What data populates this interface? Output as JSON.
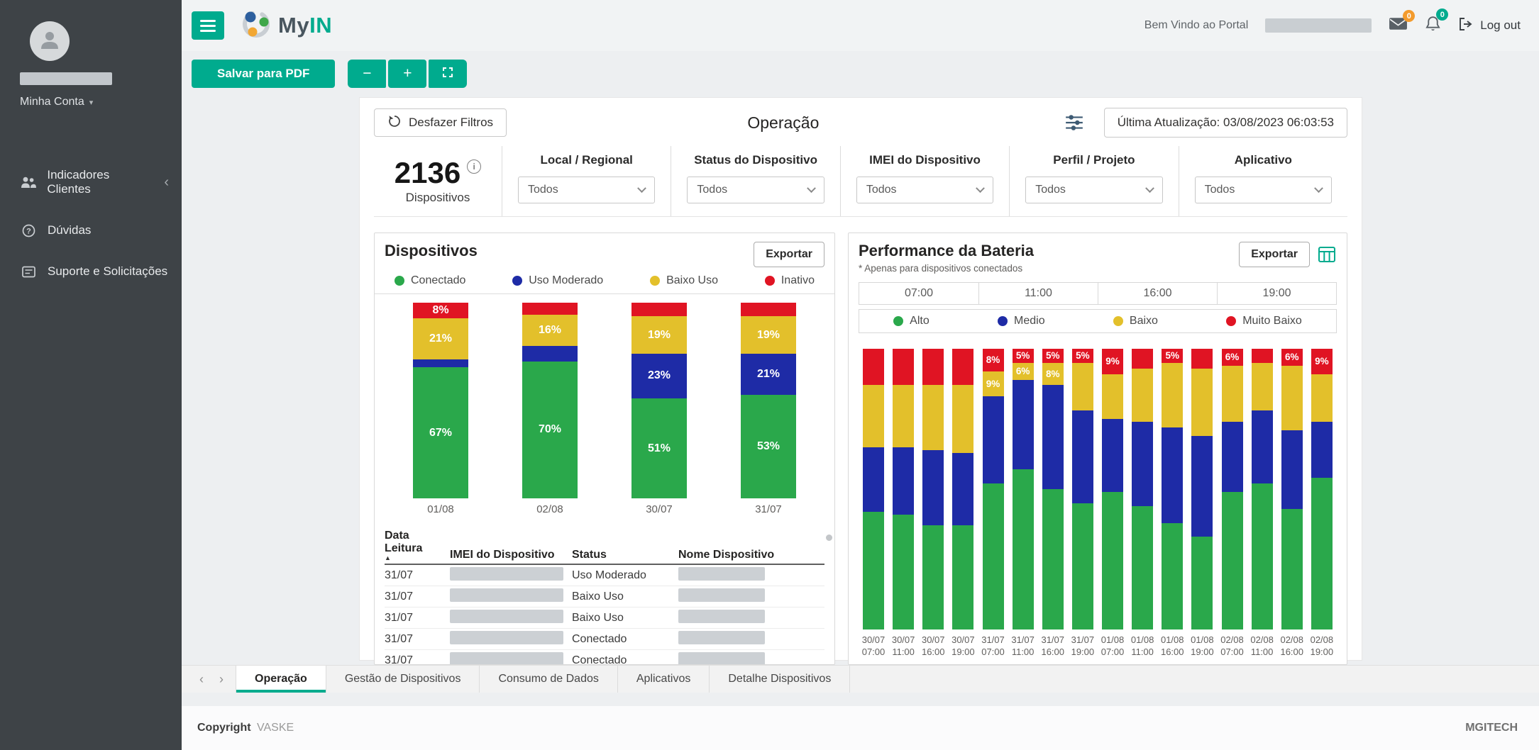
{
  "colors": {
    "accent": "#00ab8e",
    "sidebar_bg": "#3e4347",
    "green": "#2aa84b",
    "blue": "#1e2ba6",
    "yellow": "#e3c02b",
    "red": "#e01423",
    "badge_orange": "#f39b2d"
  },
  "sidebar": {
    "account_label": "Minha Conta",
    "items": [
      {
        "label": "Indicadores Clientes",
        "icon": "people-icon",
        "has_chevron": true
      },
      {
        "label": "Dúvidas",
        "icon": "question-icon",
        "has_chevron": false
      },
      {
        "label": "Suporte e Solicitações",
        "icon": "support-icon",
        "has_chevron": false
      }
    ]
  },
  "header": {
    "brand_my": "My",
    "brand_in": "IN",
    "welcome": "Bem Vindo ao Portal",
    "mail_badge": "0",
    "bell_badge": "0",
    "logout": "Log out"
  },
  "toolbar": {
    "save_pdf": "Salvar para PDF",
    "zoom_out": "−",
    "zoom_in": "+"
  },
  "report": {
    "undo_filters": "Desfazer Filtros",
    "title": "Operação",
    "last_update": "Última Atualização: 03/08/2023 06:03:53",
    "kpi": {
      "value": "2136",
      "label": "Dispositivos"
    },
    "filters": [
      {
        "label": "Local / Regional",
        "value": "Todos"
      },
      {
        "label": "Status do Dispositivo",
        "value": "Todos"
      },
      {
        "label": "IMEI do Dispositivo",
        "value": "Todos"
      },
      {
        "label": "Perfil / Projeto",
        "value": "Todos"
      },
      {
        "label": "Aplicativo",
        "value": "Todos"
      }
    ]
  },
  "chart_data": [
    {
      "type": "bar",
      "stacked": true,
      "value_format": "percent",
      "title": "Dispositivos",
      "export_label": "Exportar",
      "legend_position": "top",
      "ylim": [
        0,
        100
      ],
      "categories": [
        "01/08",
        "02/08",
        "30/07",
        "31/07"
      ],
      "series": [
        {
          "name": "Conectado",
          "color": "#2aa84b",
          "values": [
            67,
            70,
            51,
            53
          ],
          "labels": [
            "67%",
            "70%",
            "51%",
            "53%"
          ]
        },
        {
          "name": "Uso Moderado",
          "color": "#1e2ba6",
          "values": [
            4,
            8,
            23,
            21
          ],
          "labels": [
            null,
            null,
            "23%",
            "21%"
          ]
        },
        {
          "name": "Baixo Uso",
          "color": "#e3c02b",
          "values": [
            21,
            16,
            19,
            19
          ],
          "labels": [
            "21%",
            "16%",
            "19%",
            "19%"
          ]
        },
        {
          "name": "Inativo",
          "color": "#e01423",
          "values": [
            8,
            6,
            7,
            7
          ],
          "labels": [
            "8%",
            null,
            null,
            null
          ]
        }
      ]
    },
    {
      "type": "bar",
      "stacked": true,
      "value_format": "percent",
      "title": "Performance da Bateria",
      "subtitle": "* Apenas para dispositivos conectados",
      "export_label": "Exportar",
      "legend_position": "top",
      "ylim": [
        0,
        100
      ],
      "time_header": [
        "07:00",
        "11:00",
        "16:00",
        "19:00"
      ],
      "categories": [
        [
          "30/07",
          "07:00"
        ],
        [
          "30/07",
          "11:00"
        ],
        [
          "30/07",
          "16:00"
        ],
        [
          "30/07",
          "19:00"
        ],
        [
          "31/07",
          "07:00"
        ],
        [
          "31/07",
          "11:00"
        ],
        [
          "31/07",
          "16:00"
        ],
        [
          "31/07",
          "19:00"
        ],
        [
          "01/08",
          "07:00"
        ],
        [
          "01/08",
          "11:00"
        ],
        [
          "01/08",
          "16:00"
        ],
        [
          "01/08",
          "19:00"
        ],
        [
          "02/08",
          "07:00"
        ],
        [
          "02/08",
          "11:00"
        ],
        [
          "02/08",
          "16:00"
        ],
        [
          "02/08",
          "19:00"
        ]
      ],
      "series": [
        {
          "name": "Alto",
          "color": "#2aa84b",
          "values": [
            42,
            41,
            37,
            37,
            52,
            57,
            50,
            45,
            49,
            44,
            38,
            33,
            49,
            52,
            43,
            54
          ],
          "labels": [
            null,
            null,
            null,
            null,
            null,
            null,
            null,
            null,
            null,
            null,
            null,
            null,
            null,
            null,
            null,
            null
          ]
        },
        {
          "name": "Medio",
          "color": "#1e2ba6",
          "values": [
            23,
            24,
            27,
            26,
            31,
            32,
            37,
            33,
            26,
            30,
            34,
            36,
            25,
            26,
            28,
            20
          ],
          "labels": [
            null,
            null,
            null,
            null,
            null,
            null,
            null,
            null,
            null,
            null,
            null,
            null,
            null,
            null,
            null,
            null
          ]
        },
        {
          "name": "Baixo",
          "color": "#e3c02b",
          "values": [
            22,
            22,
            23,
            24,
            9,
            6,
            8,
            17,
            16,
            19,
            23,
            24,
            20,
            17,
            23,
            17
          ],
          "labels": [
            null,
            null,
            null,
            null,
            "9%",
            "6%",
            "8%",
            null,
            null,
            null,
            null,
            null,
            null,
            null,
            null,
            null
          ]
        },
        {
          "name": "Muito Baixo",
          "color": "#e01423",
          "values": [
            13,
            13,
            13,
            13,
            8,
            5,
            5,
            5,
            9,
            7,
            5,
            7,
            6,
            5,
            6,
            9
          ],
          "labels": [
            null,
            null,
            null,
            null,
            "8%",
            "5%",
            "5%",
            "5%",
            "9%",
            null,
            "5%",
            null,
            "6%",
            null,
            "6%",
            "9%"
          ]
        }
      ]
    }
  ],
  "device_table": {
    "columns": [
      "Data Leitura",
      "IMEI do Dispositivo",
      "Status",
      "Nome Dispositivo"
    ],
    "sorted_column": "Data Leitura",
    "rows": [
      {
        "data_leitura": "31/07",
        "status": "Uso Moderado"
      },
      {
        "data_leitura": "31/07",
        "status": "Baixo Uso"
      },
      {
        "data_leitura": "31/07",
        "status": "Baixo Uso"
      },
      {
        "data_leitura": "31/07",
        "status": "Conectado"
      },
      {
        "data_leitura": "31/07",
        "status": "Conectado"
      }
    ]
  },
  "tabs": {
    "prev": "‹",
    "next": "›",
    "items": [
      {
        "label": "Operação",
        "active": true
      },
      {
        "label": "Gestão de Dispositivos",
        "active": false
      },
      {
        "label": "Consumo de Dados",
        "active": false
      },
      {
        "label": "Aplicativos",
        "active": false
      },
      {
        "label": "Detalhe Dispositivos",
        "active": false
      }
    ]
  },
  "footer": {
    "copyright": "Copyright",
    "brand": "VASKE",
    "right_brand": "MGITECH"
  }
}
